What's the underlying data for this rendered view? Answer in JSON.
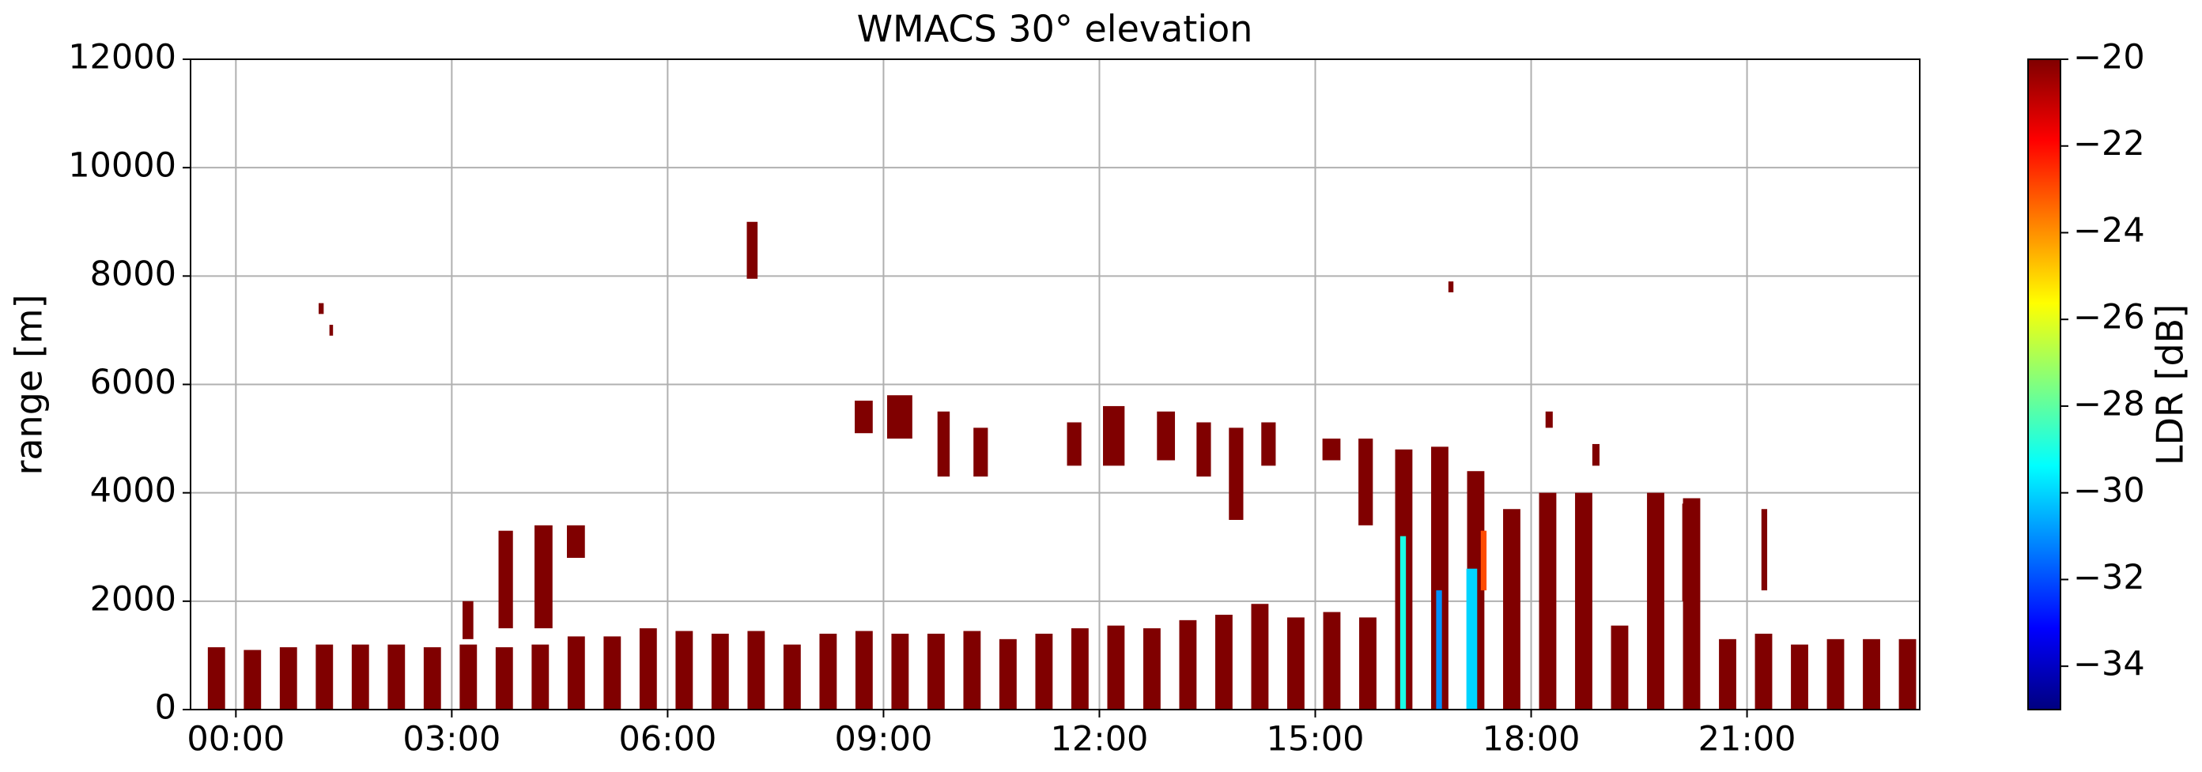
{
  "chart_data": {
    "type": "radar-time-height",
    "title": "WMACS 30° elevation",
    "y_label": "range [m]",
    "colorbar_label": "LDR [dB]",
    "colormap": "jet",
    "grid": true,
    "xlim": [
      -0.63,
      23.4
    ],
    "xticks": [
      {
        "value": 0,
        "label": "00:00"
      },
      {
        "value": 3,
        "label": "03:00"
      },
      {
        "value": 6,
        "label": "06:00"
      },
      {
        "value": 9,
        "label": "09:00"
      },
      {
        "value": 12,
        "label": "12:00"
      },
      {
        "value": 15,
        "label": "15:00"
      },
      {
        "value": 18,
        "label": "18:00"
      },
      {
        "value": 21,
        "label": "21:00"
      }
    ],
    "ylim": [
      0,
      12000
    ],
    "yticks": [
      0,
      2000,
      4000,
      6000,
      8000,
      10000,
      12000
    ],
    "clim": [
      -35,
      -20
    ],
    "cticks": [
      {
        "value": -20,
        "label": "−20"
      },
      {
        "value": -22,
        "label": "−22"
      },
      {
        "value": -24,
        "label": "−24"
      },
      {
        "value": -26,
        "label": "−26"
      },
      {
        "value": -28,
        "label": "−28"
      },
      {
        "value": -30,
        "label": "−30"
      },
      {
        "value": -32,
        "label": "−32"
      },
      {
        "value": -34,
        "label": "−34"
      }
    ],
    "echoes": [
      [
        -0.39,
        -0.15,
        0,
        1150,
        -20
      ],
      [
        0.11,
        0.35,
        0,
        1100,
        -20
      ],
      [
        0.61,
        0.85,
        0,
        1150,
        -20
      ],
      [
        1.11,
        1.35,
        0,
        1200,
        -20
      ],
      [
        1.61,
        1.85,
        0,
        1200,
        -20
      ],
      [
        2.11,
        2.35,
        0,
        1200,
        -20
      ],
      [
        2.61,
        2.85,
        0,
        1150,
        -20
      ],
      [
        3.11,
        3.35,
        0,
        1200,
        -20
      ],
      [
        3.61,
        3.85,
        0,
        1150,
        -20
      ],
      [
        4.11,
        4.35,
        0,
        1200,
        -20
      ],
      [
        4.61,
        4.85,
        0,
        1350,
        -20
      ],
      [
        5.11,
        5.35,
        0,
        1350,
        -20
      ],
      [
        5.61,
        5.85,
        0,
        1500,
        -20
      ],
      [
        6.11,
        6.35,
        0,
        1450,
        -20
      ],
      [
        6.61,
        6.85,
        0,
        1400,
        -20
      ],
      [
        7.11,
        7.35,
        0,
        1450,
        -20
      ],
      [
        7.61,
        7.85,
        0,
        1200,
        -20
      ],
      [
        8.11,
        8.35,
        0,
        1400,
        -20
      ],
      [
        8.61,
        8.85,
        0,
        1450,
        -20
      ],
      [
        9.11,
        9.35,
        0,
        1400,
        -20
      ],
      [
        9.61,
        9.85,
        0,
        1400,
        -20
      ],
      [
        10.11,
        10.35,
        0,
        1450,
        -20
      ],
      [
        10.61,
        10.85,
        0,
        1300,
        -20
      ],
      [
        11.11,
        11.35,
        0,
        1400,
        -20
      ],
      [
        11.61,
        11.85,
        0,
        1500,
        -20
      ],
      [
        12.11,
        12.35,
        0,
        1550,
        -20
      ],
      [
        12.61,
        12.85,
        0,
        1500,
        -20
      ],
      [
        13.11,
        13.35,
        0,
        1650,
        -20
      ],
      [
        13.61,
        13.85,
        0,
        1750,
        -20
      ],
      [
        14.11,
        14.35,
        0,
        1950,
        -20
      ],
      [
        14.61,
        14.85,
        0,
        1700,
        -20
      ],
      [
        15.11,
        15.35,
        0,
        1800,
        -20
      ],
      [
        15.61,
        15.85,
        0,
        1700,
        -20
      ],
      [
        16.11,
        16.35,
        0,
        4800,
        -20
      ],
      [
        16.61,
        16.85,
        0,
        4850,
        -20
      ],
      [
        17.11,
        17.35,
        0,
        4400,
        -20
      ],
      [
        17.61,
        17.85,
        0,
        3700,
        -20
      ],
      [
        18.11,
        18.35,
        0,
        4000,
        -20
      ],
      [
        18.61,
        18.85,
        0,
        4000,
        -20
      ],
      [
        19.11,
        19.35,
        0,
        1550,
        -20
      ],
      [
        19.61,
        19.85,
        0,
        4000,
        -20
      ],
      [
        20.11,
        20.35,
        0,
        3900,
        -20
      ],
      [
        20.61,
        20.85,
        0,
        1300,
        -20
      ],
      [
        21.11,
        21.35,
        0,
        1400,
        -20
      ],
      [
        21.61,
        21.85,
        0,
        1200,
        -20
      ],
      [
        22.11,
        22.35,
        0,
        1300,
        -20
      ],
      [
        22.61,
        22.85,
        0,
        1300,
        -20
      ],
      [
        23.11,
        23.35,
        0,
        1300,
        -20
      ],
      [
        7.1,
        7.25,
        7950,
        9000,
        -20
      ],
      [
        1.15,
        1.22,
        7300,
        7500,
        -20
      ],
      [
        1.3,
        1.35,
        6900,
        7100,
        -20
      ],
      [
        8.6,
        8.85,
        5100,
        5700,
        -20
      ],
      [
        9.05,
        9.4,
        5000,
        5800,
        -20
      ],
      [
        9.75,
        9.92,
        4300,
        5500,
        -20
      ],
      [
        10.25,
        10.45,
        4300,
        5200,
        -20
      ],
      [
        11.55,
        11.75,
        4500,
        5300,
        -20
      ],
      [
        12.05,
        12.35,
        4500,
        5600,
        -20
      ],
      [
        12.8,
        13.05,
        4600,
        5500,
        -20
      ],
      [
        13.35,
        13.55,
        4300,
        5300,
        -20
      ],
      [
        13.8,
        14.0,
        3500,
        5200,
        -20
      ],
      [
        14.25,
        14.45,
        4500,
        5300,
        -20
      ],
      [
        15.1,
        15.35,
        4600,
        5000,
        -20
      ],
      [
        15.6,
        15.8,
        3400,
        5000,
        -20
      ],
      [
        3.65,
        3.85,
        1500,
        3300,
        -20
      ],
      [
        4.15,
        4.4,
        1500,
        3400,
        -20
      ],
      [
        4.6,
        4.85,
        2800,
        3400,
        -20
      ],
      [
        3.15,
        3.3,
        1300,
        2000,
        -20
      ],
      [
        16.85,
        16.92,
        7700,
        7900,
        -20
      ],
      [
        18.2,
        18.3,
        5200,
        5500,
        -20
      ],
      [
        18.85,
        18.95,
        4500,
        4900,
        -20
      ],
      [
        20.1,
        20.2,
        2000,
        3800,
        -20
      ],
      [
        21.2,
        21.28,
        2200,
        3700,
        -20
      ],
      [
        16.18,
        16.26,
        0,
        3200,
        -29
      ],
      [
        16.68,
        16.76,
        0,
        2200,
        -31
      ],
      [
        17.1,
        17.25,
        0,
        2600,
        -30
      ],
      [
        17.3,
        17.38,
        2200,
        3300,
        -23
      ]
    ]
  }
}
